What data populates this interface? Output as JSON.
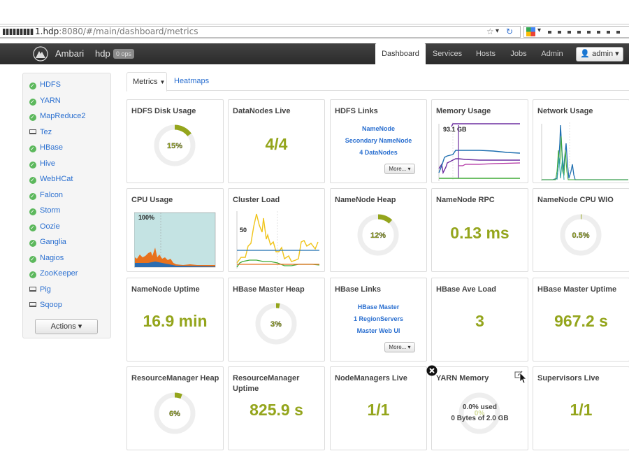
{
  "browser": {
    "url_host_suffix": "1.hdp",
    "url_rest": ":8080/#/main/dashboard/metrics"
  },
  "navbar": {
    "brand": "Ambari",
    "cluster_name": "hdp",
    "ops_badge": "0 ops",
    "tabs": [
      {
        "label": "Dashboard",
        "active": true
      },
      {
        "label": "Services",
        "active": false
      },
      {
        "label": "Hosts",
        "active": false
      },
      {
        "label": "Jobs",
        "active": false
      },
      {
        "label": "Admin",
        "active": false
      }
    ],
    "user_button": "admin"
  },
  "sidebar": {
    "services": [
      {
        "name": "HDFS",
        "status": "ok"
      },
      {
        "name": "YARN",
        "status": "ok"
      },
      {
        "name": "MapReduce2",
        "status": "ok"
      },
      {
        "name": "Tez",
        "status": "client"
      },
      {
        "name": "HBase",
        "status": "ok"
      },
      {
        "name": "Hive",
        "status": "ok"
      },
      {
        "name": "WebHCat",
        "status": "ok"
      },
      {
        "name": "Falcon",
        "status": "ok"
      },
      {
        "name": "Storm",
        "status": "ok"
      },
      {
        "name": "Oozie",
        "status": "ok"
      },
      {
        "name": "Ganglia",
        "status": "ok"
      },
      {
        "name": "Nagios",
        "status": "ok"
      },
      {
        "name": "ZooKeeper",
        "status": "ok"
      },
      {
        "name": "Pig",
        "status": "client"
      },
      {
        "name": "Sqoop",
        "status": "client"
      }
    ],
    "actions_label": "Actions"
  },
  "subtabs": {
    "metrics": "Metrics",
    "heatmaps": "Heatmaps"
  },
  "widgets": {
    "hdfs_disk_usage": {
      "title": "HDFS Disk Usage",
      "percent_label": "15%",
      "fraction": 0.15
    },
    "datanodes_live": {
      "title": "DataNodes Live",
      "value": "4/4"
    },
    "hdfs_links": {
      "title": "HDFS Links",
      "links": [
        "NameNode",
        "Secondary NameNode",
        "4 DataNodes"
      ],
      "more": "More..."
    },
    "memory_usage": {
      "title": "Memory Usage",
      "label": "93.1 GB"
    },
    "network_usage": {
      "title": "Network Usage"
    },
    "cpu_usage": {
      "title": "CPU Usage",
      "label": "100%"
    },
    "cluster_load": {
      "title": "Cluster Load",
      "label": "50"
    },
    "namenode_heap": {
      "title": "NameNode Heap",
      "percent_label": "12%",
      "fraction": 0.12
    },
    "namenode_rpc": {
      "title": "NameNode RPC",
      "value": "0.13 ms"
    },
    "namenode_cpu_wio": {
      "title": "NameNode CPU WIO",
      "percent_label": "0.5%",
      "fraction": 0.005
    },
    "namenode_uptime": {
      "title": "NameNode Uptime",
      "value": "16.9 min"
    },
    "hbase_master_heap": {
      "title": "HBase Master Heap",
      "percent_label": "3%",
      "fraction": 0.03
    },
    "hbase_links": {
      "title": "HBase Links",
      "links": [
        "HBase Master",
        "1 RegionServers",
        "Master Web UI"
      ],
      "more": "More..."
    },
    "hbase_ave_load": {
      "title": "HBase Ave Load",
      "value": "3"
    },
    "hbase_master_uptime": {
      "title": "HBase Master Uptime",
      "value": "967.2 s"
    },
    "resourcemanager_heap": {
      "title": "ResourceManager Heap",
      "percent_label": "6%",
      "fraction": 0.06
    },
    "resourcemanager_uptime": {
      "title": "ResourceManager Uptime",
      "value": "825.9 s"
    },
    "nodemanagers_live": {
      "title": "NodeManagers Live",
      "value": "1/1"
    },
    "yarn_memory": {
      "title": "YARN Memory",
      "used_label": "0.0% used",
      "detail": "0 Bytes of 2.0 GB",
      "percent_label": "0%",
      "fraction": 0.0
    },
    "supervisors_live": {
      "title": "Supervisors Live",
      "value": "1/1"
    }
  },
  "colors": {
    "accent": "#94a51c",
    "link": "#2a6fd0",
    "ok": "#5cb85c",
    "navbar": "#333333"
  }
}
